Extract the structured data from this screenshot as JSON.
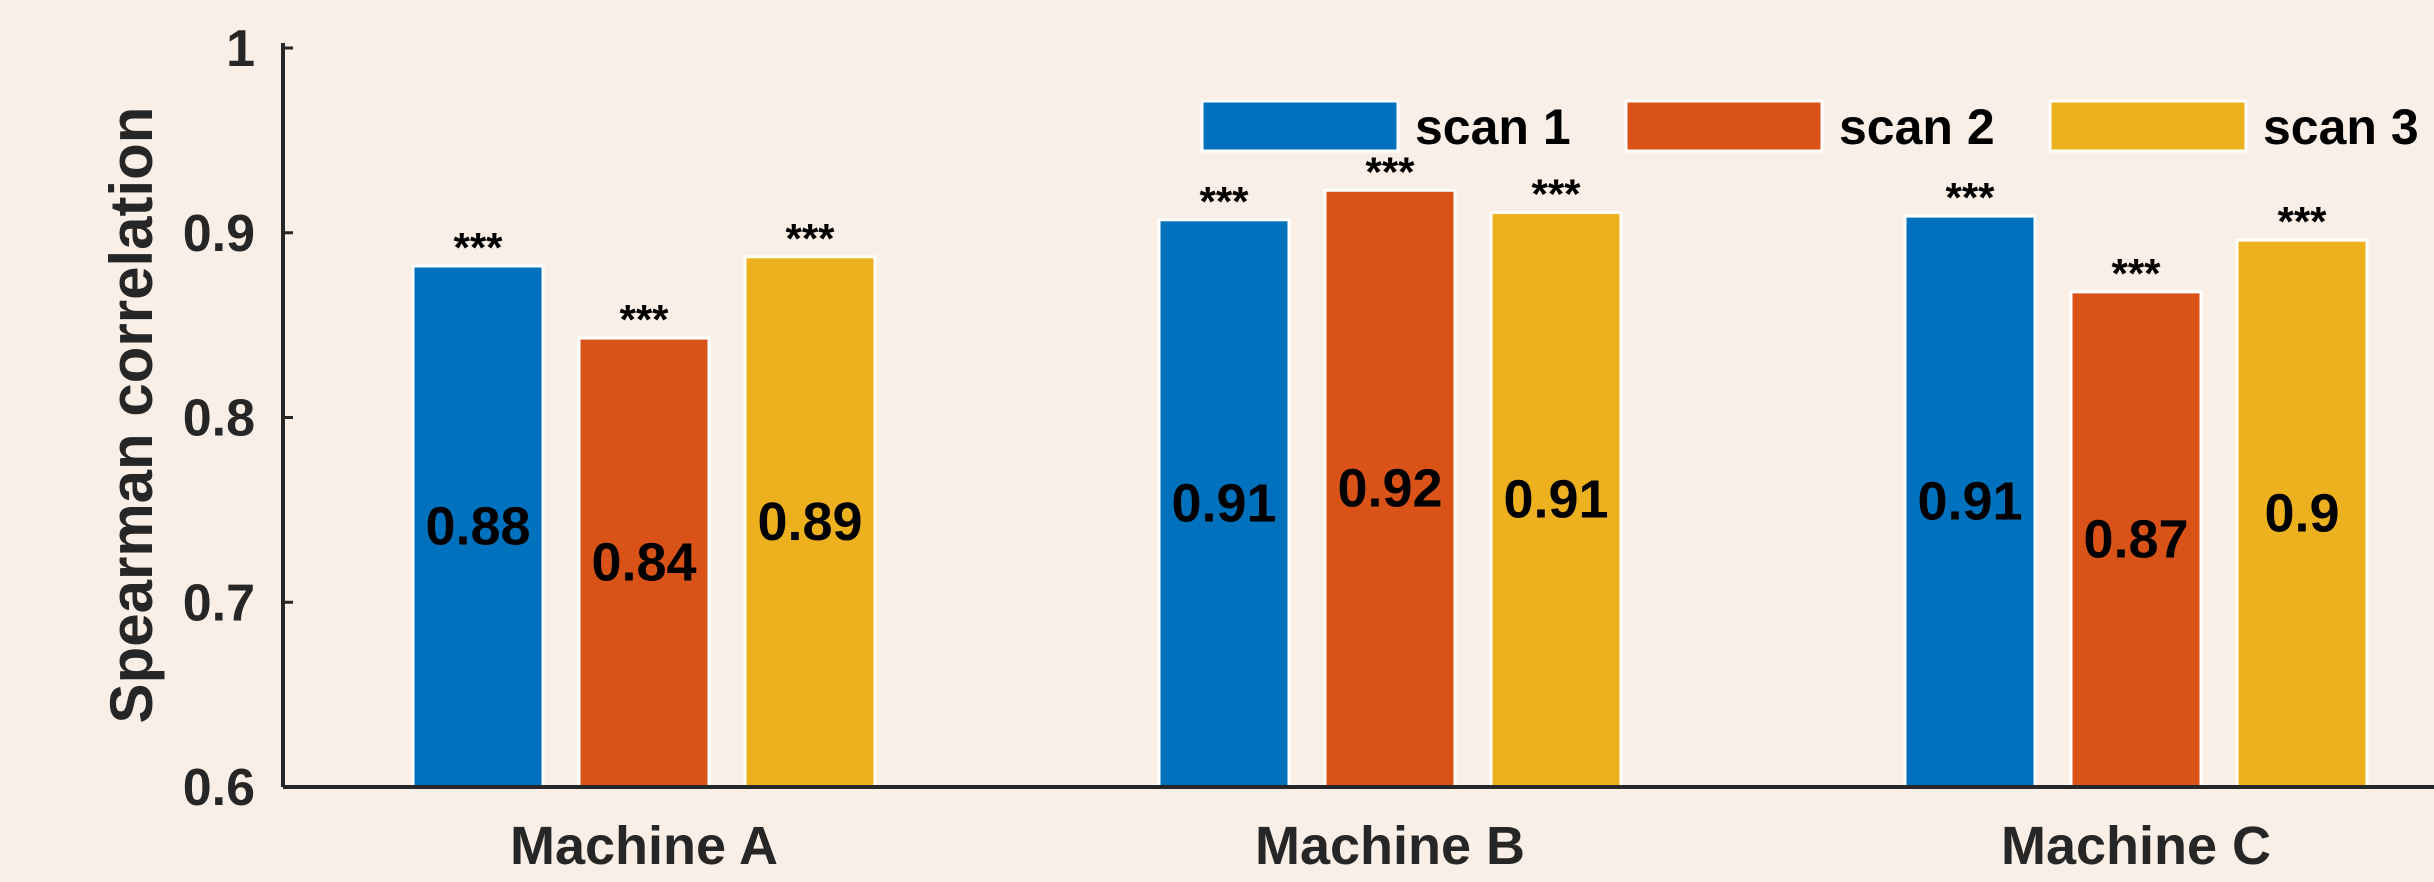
{
  "chart_data": {
    "type": "bar",
    "categories": [
      "Machine A",
      "Machine B",
      "Machine C"
    ],
    "series": [
      {
        "name": "scan 1",
        "color": "#0072bd",
        "values": [
          0.882,
          0.907,
          0.909
        ],
        "labels": [
          "0.88",
          "0.91",
          "0.91"
        ],
        "significance": [
          "***",
          "***",
          "***"
        ]
      },
      {
        "name": "scan 2",
        "color": "#d95319",
        "values": [
          0.843,
          0.923,
          0.868
        ],
        "labels": [
          "0.84",
          "0.92",
          "0.87"
        ],
        "significance": [
          "***",
          "***",
          "***"
        ]
      },
      {
        "name": "scan 3",
        "color": "#edb120",
        "values": [
          0.887,
          0.911,
          0.896
        ],
        "labels": [
          "0.89",
          "0.91",
          "0.9"
        ],
        "significance": [
          "***",
          "***",
          "***"
        ]
      }
    ],
    "ylabel": "Spearman correlation",
    "xlabel": "",
    "title": "",
    "ylim": [
      0.6,
      1
    ],
    "yticks": [
      {
        "value": 0.6,
        "label": "0.6"
      },
      {
        "value": 0.7,
        "label": "0.7"
      },
      {
        "value": 0.8,
        "label": "0.8"
      },
      {
        "value": 0.9,
        "label": "0.9"
      },
      {
        "value": 1.0,
        "label": "1"
      }
    ],
    "grid": false,
    "legend_position": "top-right",
    "legend_orientation": "horizontal"
  }
}
